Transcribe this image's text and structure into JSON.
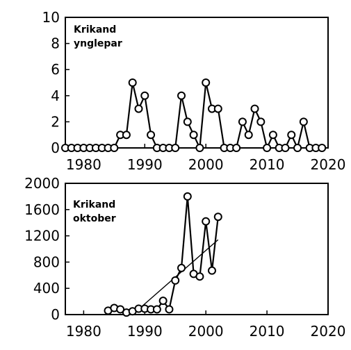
{
  "chart_data": [
    {
      "type": "line",
      "title_lines": [
        "Krikand",
        "ynglepar"
      ],
      "xlabel": "",
      "ylabel": "",
      "xlim": [
        1977,
        2020
      ],
      "ylim": [
        0,
        10
      ],
      "xticks": [
        1980,
        1990,
        2000,
        2010,
        2020
      ],
      "yticks": [
        0,
        2,
        4,
        6,
        8,
        10
      ],
      "grid": false,
      "legend": "none",
      "series": [
        {
          "x": [
            1977,
            1978,
            1979,
            1980,
            1981,
            1982,
            1983,
            1984,
            1985,
            1986,
            1987,
            1988,
            1989,
            1990,
            1991,
            1992,
            1993,
            1994,
            1995,
            1996,
            1997,
            1998,
            1999,
            2000,
            2001,
            2002,
            2003,
            2004,
            2005,
            2006,
            2007,
            2008,
            2009,
            2010,
            2011,
            2012,
            2013,
            2014,
            2015,
            2016,
            2017,
            2018,
            2019
          ],
          "values": [
            0,
            0,
            0,
            0,
            0,
            0,
            0,
            0,
            0,
            1,
            1,
            5,
            3,
            4,
            1,
            0,
            0,
            0,
            0,
            4,
            2,
            1,
            0,
            5,
            3,
            3,
            0,
            0,
            0,
            2,
            1,
            3,
            2,
            0,
            1,
            0,
            0,
            1,
            0,
            2,
            0,
            0,
            0
          ]
        }
      ]
    },
    {
      "type": "line",
      "title_lines": [
        "Krikand",
        "oktober"
      ],
      "xlabel": "",
      "ylabel": "",
      "xlim": [
        1977,
        2020
      ],
      "ylim": [
        0,
        2000
      ],
      "xticks": [
        1980,
        1990,
        2000,
        2010,
        2020
      ],
      "yticks": [
        0,
        400,
        800,
        1200,
        1600,
        2000
      ],
      "grid": false,
      "legend": "none",
      "series": [
        {
          "x": [
            1984,
            1985,
            1986,
            1987,
            1988,
            1989,
            1990,
            1991,
            1992,
            1993,
            1994,
            1995,
            1996,
            1997,
            1998,
            1999,
            2000,
            2001,
            2002
          ],
          "values": [
            60,
            100,
            80,
            30,
            50,
            90,
            90,
            80,
            80,
            210,
            80,
            520,
            710,
            1800,
            620,
            580,
            1420,
            670,
            1490
          ]
        }
      ],
      "trendline": {
        "x": [
          1988,
          2002
        ],
        "values": [
          0,
          1140
        ]
      }
    }
  ]
}
